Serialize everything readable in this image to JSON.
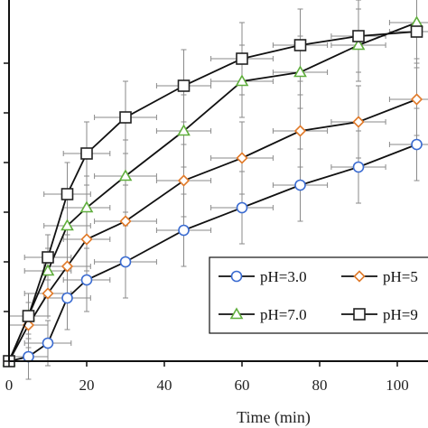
{
  "chart_data": {
    "type": "line",
    "xlabel": "Time (min)",
    "ylabel": "",
    "xlim": [
      0,
      110
    ],
    "ylim": [
      0,
      72
    ],
    "xticks": [
      0,
      20,
      40,
      60,
      80,
      100
    ],
    "xtick_labels": [
      "0",
      "20",
      "40",
      "60",
      "80",
      "100"
    ],
    "x": [
      0,
      5,
      10,
      15,
      20,
      30,
      45,
      60,
      75,
      90,
      105
    ],
    "error_bars": {
      "x": [
        3,
        5,
        6,
        6,
        6,
        8,
        7,
        8,
        7,
        7,
        7
      ],
      "y": [
        3,
        5,
        5,
        7,
        7,
        8,
        8,
        8,
        8,
        8,
        8
      ]
    },
    "series": [
      {
        "name": "pH=3.0",
        "marker": "circle",
        "color": "#3a6bd1",
        "values": [
          0,
          1,
          4,
          14,
          18,
          22,
          29,
          34,
          39,
          43,
          48
        ]
      },
      {
        "name": "pH=5",
        "marker": "diamond",
        "color": "#e07a2a",
        "values": [
          0,
          8,
          15,
          21,
          27,
          31,
          40,
          45,
          51,
          53,
          58
        ]
      },
      {
        "name": "pH=7.0",
        "marker": "triangle",
        "color": "#5fae3c",
        "values": [
          0,
          10,
          20,
          30,
          34,
          41,
          51,
          62,
          64,
          70,
          75
        ]
      },
      {
        "name": "pH=9",
        "marker": "square",
        "color": "#222222",
        "values": [
          0,
          10,
          23,
          37,
          46,
          54,
          61,
          67,
          70,
          72,
          73
        ]
      }
    ],
    "legend": {
      "placement": "bottom-right",
      "columns": 2
    },
    "grid": false
  }
}
